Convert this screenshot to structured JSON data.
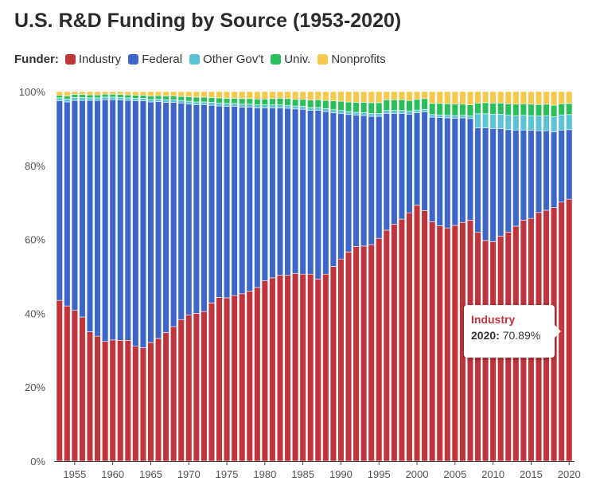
{
  "header": {
    "title": "U.S. R&D Funding by Source (1953-2020)"
  },
  "legend": {
    "title": "Funder:",
    "items": [
      {
        "label": "Industry",
        "color": "#c0343b"
      },
      {
        "label": "Federal",
        "color": "#3c66c7"
      },
      {
        "label": "Other Gov't",
        "color": "#5bc3d5"
      },
      {
        "label": "Univ.",
        "color": "#2bbf5c"
      },
      {
        "label": "Nonprofits",
        "color": "#f6c84b"
      }
    ]
  },
  "tooltip": {
    "series": "Industry",
    "year": "2020:",
    "value": "70.89%"
  },
  "chart_data": {
    "type": "bar",
    "stacked": true,
    "title": "U.S. R&D Funding by Source (1953-2020)",
    "x": [
      1953,
      1954,
      1955,
      1956,
      1957,
      1958,
      1959,
      1960,
      1961,
      1962,
      1963,
      1964,
      1965,
      1966,
      1967,
      1968,
      1969,
      1970,
      1971,
      1972,
      1973,
      1974,
      1975,
      1976,
      1977,
      1978,
      1979,
      1980,
      1981,
      1982,
      1983,
      1984,
      1985,
      1986,
      1987,
      1988,
      1989,
      1990,
      1991,
      1992,
      1993,
      1994,
      1995,
      1996,
      1997,
      1998,
      1999,
      2000,
      2001,
      2002,
      2003,
      2004,
      2005,
      2006,
      2007,
      2008,
      2009,
      2010,
      2011,
      2012,
      2013,
      2014,
      2015,
      2016,
      2017,
      2018,
      2019,
      2020
    ],
    "x_ticks": [
      "1955",
      "1960",
      "1965",
      "1970",
      "1975",
      "1980",
      "1985",
      "1990",
      "1995",
      "2000",
      "2005",
      "2010",
      "2015",
      "2020"
    ],
    "y_ticks": [
      "0%",
      "20%",
      "40%",
      "60%",
      "80%",
      "100%"
    ],
    "ylim": [
      0,
      100
    ],
    "series": [
      {
        "name": "Industry",
        "values": [
          43.5,
          42.0,
          40.8,
          39.0,
          35.0,
          33.8,
          32.4,
          32.8,
          32.7,
          32.7,
          31.1,
          30.7,
          32.1,
          33.2,
          34.8,
          36.4,
          38.3,
          39.5,
          40.0,
          40.5,
          42.8,
          44.3,
          44.2,
          44.8,
          45.3,
          46.0,
          47.0,
          48.8,
          49.6,
          50.3,
          50.3,
          50.8,
          50.6,
          50.6,
          49.3,
          50.6,
          52.7,
          54.7,
          56.6,
          58.1,
          58.2,
          58.6,
          60.3,
          62.5,
          64.1,
          65.5,
          67.2,
          69.3,
          67.8,
          64.8,
          63.7,
          63.1,
          63.8,
          64.6,
          65.2,
          61.9,
          59.7,
          59.4,
          60.9,
          62.0,
          63.6,
          65.2,
          65.7,
          67.3,
          67.9,
          68.6,
          70.1,
          70.89
        ]
      },
      {
        "name": "Federal",
        "values": [
          54.0,
          55.2,
          56.8,
          58.6,
          62.6,
          63.8,
          65.4,
          65.0,
          65.0,
          64.9,
          66.4,
          66.8,
          65.1,
          64.1,
          62.3,
          60.7,
          58.6,
          57.1,
          56.4,
          55.9,
          53.5,
          51.8,
          51.8,
          51.2,
          50.5,
          49.8,
          48.6,
          46.8,
          46.0,
          45.3,
          45.2,
          44.5,
          44.6,
          44.3,
          45.6,
          44.0,
          41.6,
          39.4,
          37.2,
          35.5,
          35.3,
          34.7,
          33.0,
          31.6,
          30.0,
          28.6,
          26.7,
          25.0,
          26.7,
          28.3,
          29.3,
          29.8,
          29.0,
          28.3,
          27.5,
          28.3,
          30.5,
          30.6,
          29.1,
          27.7,
          26.0,
          24.4,
          23.8,
          22.1,
          21.5,
          20.5,
          19.5,
          18.8
        ]
      },
      {
        "name": "Other Gov't",
        "values": [
          0.8,
          0.8,
          0.8,
          0.8,
          0.7,
          0.7,
          0.7,
          0.7,
          0.7,
          0.7,
          0.7,
          0.7,
          0.7,
          0.7,
          0.7,
          0.7,
          0.7,
          0.8,
          0.8,
          0.8,
          0.8,
          0.8,
          0.8,
          0.8,
          0.8,
          0.8,
          0.8,
          0.8,
          0.8,
          0.8,
          0.8,
          0.8,
          0.8,
          0.8,
          0.8,
          0.8,
          0.8,
          0.8,
          0.8,
          0.8,
          0.8,
          0.8,
          0.8,
          0.8,
          0.8,
          0.8,
          0.8,
          0.7,
          0.7,
          0.7,
          0.7,
          0.7,
          0.7,
          0.7,
          0.7,
          3.8,
          3.8,
          3.9,
          3.9,
          3.9,
          3.9,
          4.0,
          4.0,
          4.0,
          4.1,
          4.1,
          4.1,
          4.1
        ]
      },
      {
        "name": "Univ.",
        "values": [
          0.7,
          0.8,
          0.8,
          0.8,
          0.8,
          0.8,
          0.8,
          0.8,
          0.8,
          0.8,
          0.8,
          0.8,
          0.9,
          0.9,
          1.0,
          1.0,
          1.1,
          1.2,
          1.3,
          1.3,
          1.3,
          1.4,
          1.4,
          1.4,
          1.5,
          1.5,
          1.6,
          1.6,
          1.7,
          1.8,
          1.8,
          1.8,
          1.9,
          2.0,
          2.1,
          2.2,
          2.4,
          2.5,
          2.6,
          2.7,
          2.8,
          2.9,
          2.9,
          2.9,
          2.9,
          2.9,
          2.9,
          2.9,
          2.9,
          3.0,
          3.1,
          3.1,
          3.1,
          3.0,
          3.0,
          2.9,
          3.0,
          3.0,
          3.0,
          3.1,
          3.1,
          3.1,
          3.1,
          3.1,
          3.1,
          3.1,
          3.0,
          3.0
        ]
      },
      {
        "name": "Nonprofits",
        "values": [
          1.0,
          1.2,
          0.8,
          0.8,
          0.9,
          0.9,
          0.7,
          0.7,
          0.8,
          0.9,
          1.0,
          1.0,
          1.2,
          1.1,
          1.2,
          1.2,
          1.3,
          1.4,
          1.5,
          1.5,
          1.6,
          1.7,
          1.8,
          1.8,
          1.9,
          1.9,
          2.0,
          2.0,
          1.9,
          1.8,
          1.9,
          2.1,
          2.1,
          2.3,
          2.2,
          2.4,
          2.5,
          2.6,
          2.8,
          2.9,
          2.9,
          3.0,
          3.0,
          2.2,
          2.2,
          2.2,
          2.4,
          2.1,
          1.9,
          3.2,
          3.2,
          3.3,
          3.4,
          3.4,
          3.6,
          3.1,
          3.0,
          3.1,
          3.1,
          3.3,
          3.4,
          3.3,
          3.4,
          3.5,
          3.4,
          3.7,
          3.3,
          3.21
        ]
      }
    ]
  }
}
